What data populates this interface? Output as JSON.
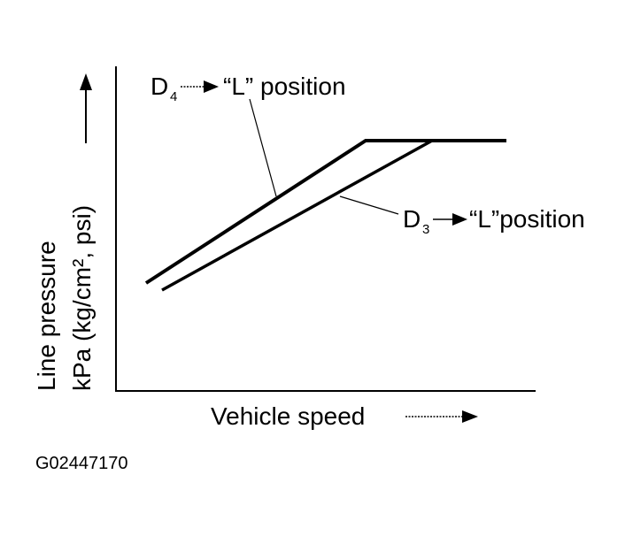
{
  "axes": {
    "y_label_line1": "Line pressure",
    "y_label_line2": "kPa (kg/cm², psi)",
    "x_label": "Vehicle speed"
  },
  "curves": [
    {
      "label": "D",
      "label_sub": "4",
      "label_target": "“L” position"
    },
    {
      "label": "D",
      "label_sub": "3",
      "label_target": "“L”position"
    }
  ],
  "figure_id": "G02447170"
}
